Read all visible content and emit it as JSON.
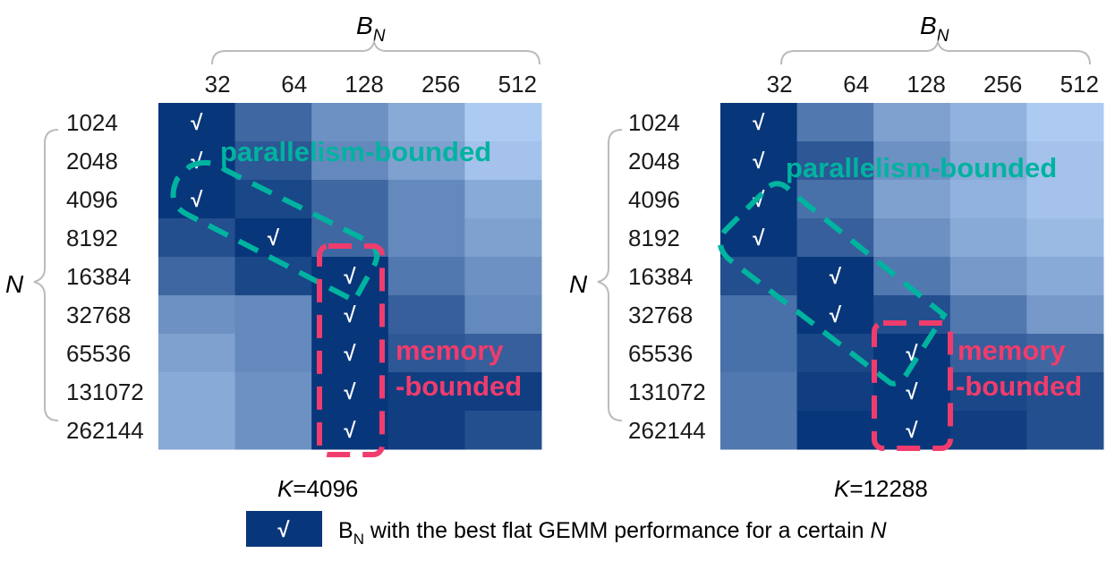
{
  "chart_data": {
    "type": "heatmap",
    "value_meaning": "relative darkness (1 = darkest / best)",
    "color_low": "#BFDBFF",
    "color_high": "#08367A",
    "x_title": {
      "main": "B",
      "sub": "N"
    },
    "y_title": "N",
    "x_ticks": [
      "32",
      "64",
      "128",
      "256",
      "512"
    ],
    "y_ticks": [
      "1024",
      "2048",
      "4096",
      "8192",
      "16384",
      "32768",
      "65536",
      "131072",
      "262144"
    ],
    "check_mark": "√",
    "panels": [
      {
        "caption_var": "K",
        "caption_value": "=4096",
        "values": [
          [
            1.0,
            0.7,
            0.45,
            0.3,
            0.1
          ],
          [
            1.0,
            0.8,
            0.5,
            0.35,
            0.15
          ],
          [
            1.0,
            0.9,
            0.7,
            0.5,
            0.3
          ],
          [
            0.85,
            1.0,
            0.7,
            0.5,
            0.35
          ],
          [
            0.7,
            0.9,
            1.0,
            0.6,
            0.45
          ],
          [
            0.45,
            0.5,
            1.0,
            0.75,
            0.5
          ],
          [
            0.35,
            0.5,
            1.0,
            0.8,
            0.75
          ],
          [
            0.3,
            0.45,
            1.0,
            0.95,
            0.95
          ],
          [
            0.3,
            0.45,
            1.0,
            0.95,
            0.85
          ]
        ],
        "best_col": [
          0,
          0,
          0,
          1,
          2,
          2,
          2,
          2,
          2
        ],
        "annotations": {
          "parallelism": "parallelism-bounded",
          "memory_1": "memory",
          "memory_2": "-bounded"
        }
      },
      {
        "caption_var": "K",
        "caption_value": "=12288",
        "values": [
          [
            1.0,
            0.6,
            0.35,
            0.25,
            0.1
          ],
          [
            1.0,
            0.8,
            0.45,
            0.3,
            0.15
          ],
          [
            1.0,
            0.65,
            0.35,
            0.25,
            0.15
          ],
          [
            1.0,
            0.75,
            0.45,
            0.3,
            0.2
          ],
          [
            0.85,
            1.0,
            0.6,
            0.4,
            0.3
          ],
          [
            0.65,
            1.0,
            0.85,
            0.6,
            0.4
          ],
          [
            0.65,
            0.9,
            1.0,
            0.75,
            0.7
          ],
          [
            0.6,
            0.95,
            1.0,
            0.9,
            0.85
          ],
          [
            0.6,
            1.0,
            1.0,
            0.95,
            0.85
          ]
        ],
        "best_col": [
          0,
          0,
          0,
          0,
          1,
          1,
          2,
          2,
          2
        ],
        "annotations": {
          "parallelism": "parallelism-bounded",
          "memory_1": "memory",
          "memory_2": "-bounded"
        }
      }
    ],
    "annotation_colors": {
      "parallelism": "#00B3A0",
      "memory": "#F03C6C"
    },
    "legend": {
      "symbol": "√",
      "text_main": "B",
      "text_sub": "N",
      "text_rest": " with the best flat GEMM performance for a certain ",
      "text_var": "N"
    }
  }
}
